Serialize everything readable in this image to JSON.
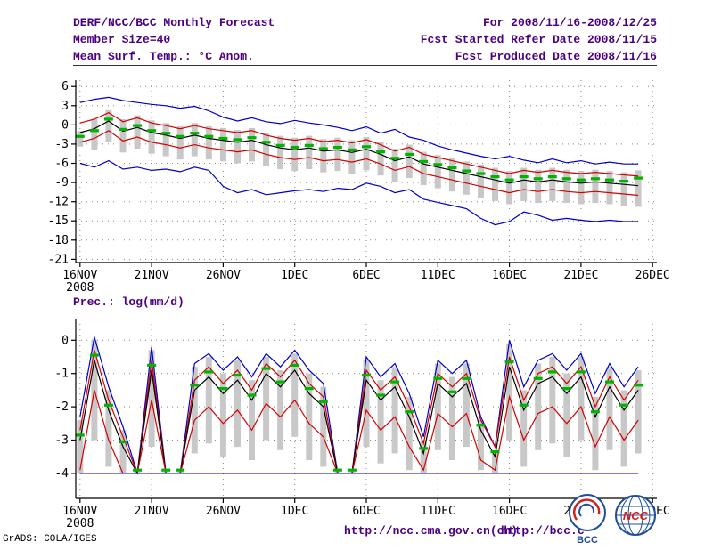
{
  "header": {
    "line1_left": "DERF/NCC/BCC Monthly Forecast",
    "line1_right": "For 2008/11/16-2008/12/25",
    "line2_left": "Member Size=40",
    "line2_right": "Fcst Started Refer Date 2008/11/15",
    "line3_left": "Mean Surf. Temp.: °C Anom.",
    "line3_right": "Fcst Produced Date 2008/11/16"
  },
  "footer": {
    "credit": "GrADS: COLA/IGES",
    "url_ncc": "http://ncc.cma.gov.cn(ch)",
    "url_bcc": "http://bcc.c",
    "logo_bcc_label": "BCC",
    "logo_ncc_label": "NCC"
  },
  "colors": {
    "header_text": "#4b0082",
    "blue": "#0000cc",
    "red": "#d40000",
    "black": "#000000",
    "median_dash": "#00b400",
    "spread_bar": "#c8c8c8",
    "grid": "#888888",
    "axis": "#000000",
    "logo_blue": "#1f4e9c",
    "logo_red": "#d02020"
  },
  "chart_data": [
    {
      "type": "line",
      "title": "Mean Surf. Temp.: °C Anom.",
      "xlabel": "",
      "ylabel": "",
      "grid": "dotted",
      "legend": "none",
      "ylim": [
        -21.5,
        7
      ],
      "xlim": [
        -0.3,
        40.3
      ],
      "yticks": [
        6,
        3,
        0,
        -3,
        -6,
        -9,
        -12,
        -15,
        -18,
        -21
      ],
      "xticks": [
        {
          "pos": 0,
          "label": "16NOV",
          "sub": "2008"
        },
        {
          "pos": 5,
          "label": "21NOV"
        },
        {
          "pos": 10,
          "label": "26NOV"
        },
        {
          "pos": 15,
          "label": "1DEC"
        },
        {
          "pos": 20,
          "label": "6DEC"
        },
        {
          "pos": 25,
          "label": "11DEC"
        },
        {
          "pos": 30,
          "label": "16DEC"
        },
        {
          "pos": 35,
          "label": "21DEC"
        },
        {
          "pos": 40,
          "label": "26DEC"
        }
      ],
      "series": [
        {
          "name": "ensemble-max",
          "color": "blue",
          "values": [
            3.5,
            4.0,
            4.3,
            3.8,
            3.5,
            3.2,
            3.0,
            2.6,
            2.9,
            2.2,
            1.2,
            0.6,
            1.1,
            0.5,
            0.2,
            0.7,
            0.3,
            0.0,
            -0.4,
            -0.9,
            -0.3,
            -1.3,
            -0.7,
            -1.9,
            -2.4,
            -3.3,
            -3.9,
            -4.4,
            -4.9,
            -5.3,
            -4.9,
            -5.5,
            -5.9,
            -5.3,
            -5.9,
            -5.6,
            -6.1,
            -5.8,
            -6.1,
            -6.1
          ]
        },
        {
          "name": "upper-quartile",
          "color": "red",
          "values": [
            0.3,
            0.9,
            1.9,
            0.5,
            1.1,
            0.3,
            -0.1,
            -0.6,
            -0.1,
            -0.6,
            -0.9,
            -1.2,
            -0.9,
            -1.6,
            -2.1,
            -2.4,
            -2.1,
            -2.6,
            -2.4,
            -2.8,
            -2.3,
            -3.1,
            -4.1,
            -3.5,
            -4.6,
            -5.1,
            -5.6,
            -6.1,
            -6.6,
            -7.1,
            -7.6,
            -7.1,
            -7.4,
            -7.1,
            -7.4,
            -7.6,
            -7.4,
            -7.6,
            -7.8,
            -8.0
          ]
        },
        {
          "name": "ensemble-mean",
          "color": "black",
          "values": [
            -1.2,
            -0.6,
            0.6,
            -1.0,
            -0.4,
            -1.2,
            -1.6,
            -2.1,
            -1.6,
            -2.1,
            -2.4,
            -2.7,
            -2.4,
            -3.1,
            -3.6,
            -3.9,
            -3.6,
            -4.1,
            -3.9,
            -4.3,
            -3.8,
            -4.6,
            -5.6,
            -5.0,
            -6.1,
            -6.6,
            -7.1,
            -7.6,
            -8.1,
            -8.6,
            -9.1,
            -8.6,
            -8.9,
            -8.6,
            -8.9,
            -9.1,
            -8.9,
            -9.1,
            -9.3,
            -9.5
          ]
        },
        {
          "name": "lower-quartile",
          "color": "red",
          "values": [
            -2.7,
            -2.1,
            -0.9,
            -2.5,
            -1.9,
            -2.7,
            -3.1,
            -3.6,
            -3.1,
            -3.6,
            -3.9,
            -4.2,
            -3.9,
            -4.6,
            -5.1,
            -5.4,
            -5.1,
            -5.6,
            -5.4,
            -5.8,
            -5.3,
            -6.1,
            -7.1,
            -6.5,
            -7.6,
            -8.1,
            -8.6,
            -9.1,
            -9.6,
            -10.1,
            -10.6,
            -10.1,
            -10.4,
            -10.1,
            -10.4,
            -10.6,
            -10.4,
            -10.6,
            -10.8,
            -11.0
          ]
        },
        {
          "name": "ensemble-min",
          "color": "blue",
          "values": [
            -6.0,
            -6.6,
            -5.6,
            -6.9,
            -6.6,
            -7.1,
            -6.9,
            -7.3,
            -6.6,
            -7.1,
            -9.6,
            -10.6,
            -10.1,
            -10.9,
            -10.6,
            -10.3,
            -10.1,
            -10.4,
            -9.9,
            -10.1,
            -9.1,
            -9.6,
            -10.6,
            -10.1,
            -11.6,
            -12.1,
            -12.6,
            -13.1,
            -14.6,
            -15.6,
            -15.1,
            -13.6,
            -14.1,
            -14.9,
            -14.6,
            -14.9,
            -15.1,
            -14.9,
            -15.1,
            -15.1
          ]
        }
      ],
      "median": [
        -1.8,
        -0.9,
        0.9,
        -0.7,
        -0.1,
        -0.9,
        -1.3,
        -1.8,
        -1.3,
        -1.8,
        -2.1,
        -2.3,
        -2.0,
        -2.7,
        -3.2,
        -3.5,
        -3.2,
        -3.7,
        -3.5,
        -3.9,
        -3.4,
        -4.2,
        -5.2,
        -4.6,
        -5.7,
        -6.2,
        -6.7,
        -7.2,
        -7.6,
        -8.1,
        -8.6,
        -8.1,
        -8.4,
        -8.1,
        -8.4,
        -8.6,
        -8.4,
        -8.6,
        -8.8,
        -8.3
      ],
      "bar_top": [
        -1.0,
        0.9,
        2.3,
        0.9,
        1.5,
        0.7,
        0.3,
        -0.2,
        0.3,
        -0.2,
        -0.5,
        -0.8,
        -0.5,
        -1.2,
        -1.7,
        -2.0,
        -1.7,
        -2.2,
        -2.0,
        -2.4,
        -1.9,
        -2.7,
        -3.7,
        -3.1,
        -4.2,
        -4.7,
        -5.2,
        -5.7,
        -6.2,
        -6.7,
        -7.2,
        -6.7,
        -7.0,
        -6.7,
        -7.0,
        -7.2,
        -7.0,
        -7.2,
        -7.4,
        -7.1
      ],
      "bar_bottom": [
        -3.4,
        -3.9,
        -2.6,
        -4.3,
        -3.7,
        -4.5,
        -4.9,
        -5.4,
        -4.9,
        -5.4,
        -5.7,
        -6.0,
        -5.7,
        -6.4,
        -6.9,
        -7.2,
        -6.9,
        -7.4,
        -7.2,
        -7.6,
        -7.1,
        -7.9,
        -8.9,
        -8.3,
        -9.4,
        -9.9,
        -10.4,
        -10.9,
        -11.4,
        -11.9,
        -12.4,
        -11.9,
        -12.2,
        -11.9,
        -12.2,
        -12.4,
        -12.2,
        -12.4,
        -12.6,
        -12.8
      ]
    },
    {
      "type": "line",
      "title": "Prec.: log(mm/d)",
      "xlabel": "",
      "ylabel": "",
      "grid": "dotted",
      "legend": "none",
      "ylim": [
        -4.75,
        0.65
      ],
      "xlim": [
        -0.3,
        40.3
      ],
      "yticks": [
        0,
        -1,
        -2,
        -3,
        -4
      ],
      "xticks": [
        {
          "pos": 0,
          "label": "16NOV",
          "sub": "2008"
        },
        {
          "pos": 5,
          "label": "21NOV"
        },
        {
          "pos": 10,
          "label": "26NOV"
        },
        {
          "pos": 15,
          "label": "1DEC"
        },
        {
          "pos": 20,
          "label": "6DEC"
        },
        {
          "pos": 25,
          "label": "11DEC"
        },
        {
          "pos": 30,
          "label": "16DEC"
        },
        {
          "pos": 35,
          "label": "21DEC"
        },
        {
          "pos": 40,
          "label": "26DEC"
        }
      ],
      "series": [
        {
          "name": "ensemble-max",
          "color": "blue",
          "values": [
            -2.3,
            0.1,
            -1.4,
            -2.6,
            -4.0,
            -0.2,
            -4.0,
            -4.0,
            -0.7,
            -0.4,
            -0.9,
            -0.5,
            -1.1,
            -0.4,
            -0.8,
            -0.3,
            -0.9,
            -1.3,
            -4.0,
            -4.0,
            -0.5,
            -1.1,
            -0.7,
            -1.6,
            -2.9,
            -0.6,
            -1.0,
            -0.6,
            -2.3,
            -3.2,
            0.0,
            -1.4,
            -0.6,
            -0.4,
            -0.9,
            -0.4,
            -1.6,
            -0.7,
            -1.4,
            -0.8
          ]
        },
        {
          "name": "upper-quartile",
          "color": "red",
          "values": [
            -2.7,
            -0.3,
            -1.8,
            -2.9,
            -4.0,
            -0.6,
            -4.0,
            -4.0,
            -1.2,
            -0.8,
            -1.3,
            -0.9,
            -1.5,
            -0.7,
            -1.1,
            -0.6,
            -1.3,
            -1.7,
            -4.0,
            -4.0,
            -0.9,
            -1.5,
            -1.1,
            -2.0,
            -3.1,
            -1.0,
            -1.4,
            -1.0,
            -2.4,
            -3.2,
            -0.5,
            -1.8,
            -1.0,
            -0.8,
            -1.3,
            -0.8,
            -2.0,
            -1.1,
            -1.8,
            -1.2
          ]
        },
        {
          "name": "ensemble-mean",
          "color": "black",
          "values": [
            -3.0,
            -0.6,
            -2.1,
            -3.2,
            -4.0,
            -0.9,
            -4.0,
            -4.0,
            -1.5,
            -1.1,
            -1.6,
            -1.2,
            -1.8,
            -1.0,
            -1.4,
            -0.9,
            -1.6,
            -2.0,
            -4.0,
            -4.0,
            -1.2,
            -1.8,
            -1.4,
            -2.3,
            -3.4,
            -1.3,
            -1.7,
            -1.3,
            -2.7,
            -3.5,
            -0.8,
            -2.1,
            -1.3,
            -1.1,
            -1.6,
            -1.1,
            -2.3,
            -1.4,
            -2.1,
            -1.5
          ]
        },
        {
          "name": "lower-quartile",
          "color": "red",
          "values": [
            -3.9,
            -1.5,
            -3.0,
            -4.0,
            -4.0,
            -1.8,
            -4.0,
            -4.0,
            -2.4,
            -2.0,
            -2.5,
            -2.1,
            -2.7,
            -1.9,
            -2.3,
            -1.8,
            -2.5,
            -2.9,
            -4.0,
            -4.0,
            -2.1,
            -2.7,
            -2.3,
            -3.2,
            -3.9,
            -2.2,
            -2.6,
            -2.2,
            -3.6,
            -3.9,
            -1.7,
            -3.0,
            -2.2,
            -2.0,
            -2.5,
            -2.0,
            -3.2,
            -2.3,
            -3.0,
            -2.4
          ]
        },
        {
          "name": "ensemble-min",
          "color": "blue",
          "values": [
            -4.0,
            -4.0,
            -4.0,
            -4.0,
            -4.0,
            -4.0,
            -4.0,
            -4.0,
            -4.0,
            -4.0,
            -4.0,
            -4.0,
            -4.0,
            -4.0,
            -4.0,
            -4.0,
            -4.0,
            -4.0,
            -4.0,
            -4.0,
            -4.0,
            -4.0,
            -4.0,
            -4.0,
            -4.0,
            -4.0,
            -4.0,
            -4.0,
            -4.0,
            -4.0,
            -4.0,
            -4.0,
            -4.0,
            -4.0,
            -4.0,
            -4.0,
            -4.0,
            -4.0,
            -4.0,
            -4.0
          ]
        }
      ],
      "median": [
        -2.85,
        -0.45,
        -1.95,
        -3.05,
        -3.9,
        -0.75,
        -3.9,
        -3.9,
        -1.35,
        -0.95,
        -1.45,
        -1.05,
        -1.65,
        -0.85,
        -1.25,
        -0.75,
        -1.45,
        -1.85,
        -3.9,
        -3.9,
        -1.05,
        -1.65,
        -1.25,
        -2.15,
        -3.25,
        -1.15,
        -1.55,
        -1.15,
        -2.55,
        -3.35,
        -0.65,
        -1.95,
        -1.15,
        -0.95,
        -1.45,
        -0.95,
        -2.15,
        -1.25,
        -1.95,
        -1.35
      ],
      "bar_top": [
        -2.4,
        0.0,
        -1.5,
        -2.7,
        -3.95,
        -0.3,
        -3.95,
        -3.95,
        -0.8,
        -0.5,
        -1.0,
        -0.6,
        -1.2,
        -0.5,
        -0.9,
        -0.4,
        -1.0,
        -1.4,
        -3.95,
        -3.95,
        -0.6,
        -1.2,
        -0.8,
        -1.7,
        -3.0,
        -0.7,
        -1.1,
        -0.7,
        -2.4,
        -3.3,
        -0.1,
        -1.5,
        -0.7,
        -0.5,
        -1.0,
        -0.5,
        -1.7,
        -0.8,
        -1.5,
        -0.9
      ],
      "bar_bottom": [
        -4.0,
        -3.0,
        -3.8,
        -4.0,
        -4.0,
        -3.2,
        -4.0,
        -4.0,
        -3.4,
        -3.1,
        -3.5,
        -3.2,
        -3.6,
        -3.0,
        -3.3,
        -2.9,
        -3.6,
        -3.8,
        -4.0,
        -4.0,
        -3.2,
        -3.7,
        -3.4,
        -3.9,
        -4.0,
        -3.3,
        -3.6,
        -3.2,
        -3.9,
        -4.0,
        -3.0,
        -3.8,
        -3.3,
        -3.1,
        -3.5,
        -3.0,
        -3.9,
        -3.3,
        -3.8,
        -3.4
      ]
    }
  ]
}
